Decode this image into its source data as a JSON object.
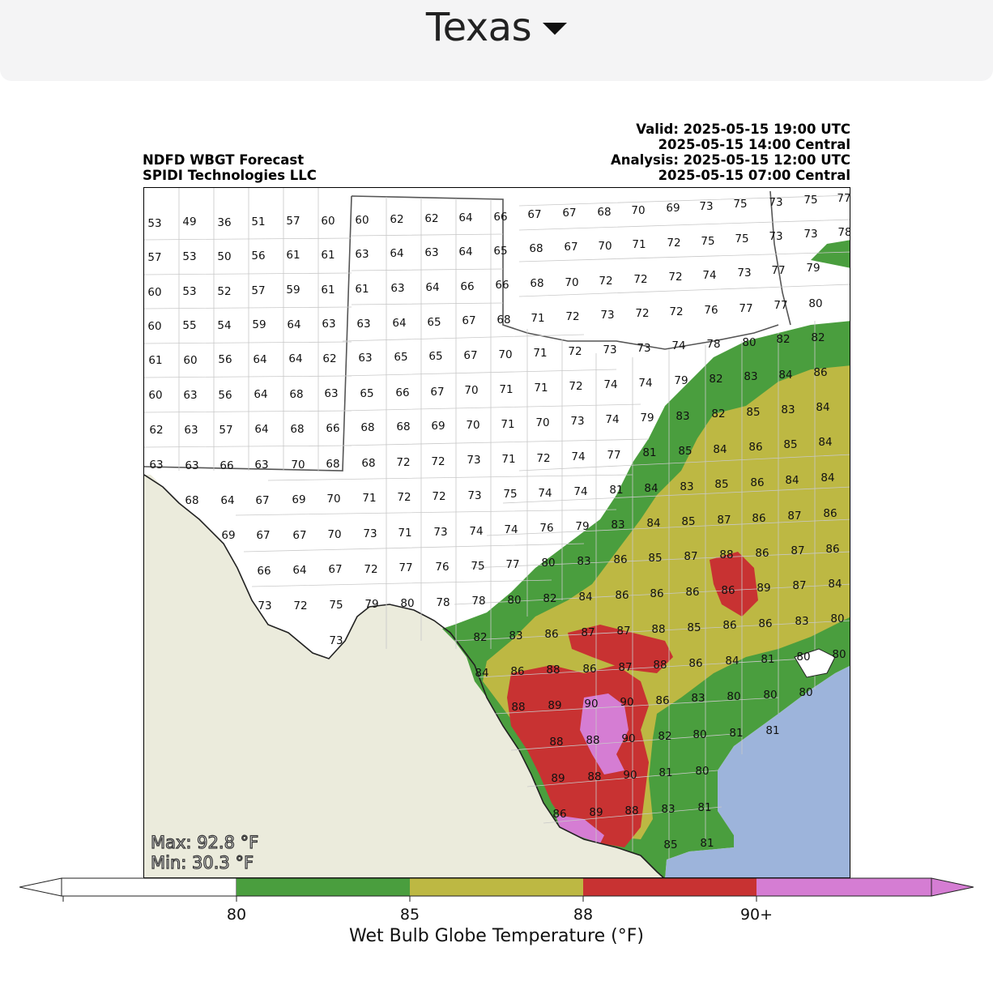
{
  "region_selector": {
    "label": "Texas",
    "icon": "caret-down-icon"
  },
  "header_left": {
    "line1": "NDFD WBGT Forecast",
    "line2": "SPIDI Technologies LLC"
  },
  "header_right": {
    "valid_utc": "Valid: 2025-05-15 19:00 UTC",
    "valid_central": "2025-05-15 14:00 Central",
    "analysis_utc": "Analysis: 2025-05-15 12:00 UTC",
    "analysis_central": "2025-05-15 07:00 Central"
  },
  "stats": {
    "max": "Max: 92.8 °F",
    "min": "Min: 30.3 °F"
  },
  "colorbar": {
    "title": "Wet Bulb Globe Temperature (°F)",
    "ticks": [
      "80",
      "85",
      "88",
      "90+"
    ],
    "colors": {
      "below_80": "#ffffff",
      "80_85": "#4a9e3e",
      "85_88": "#bdb843",
      "88_90": "#c83232",
      "90_plus": "#d57dd3"
    }
  },
  "map_colors": {
    "land_outside": "#ebebdc",
    "water": "#9db4db",
    "borders": "#bdbdbd",
    "state_line": "#555555"
  },
  "points": [
    [
      "53",
      190,
      275
    ],
    [
      "49",
      233,
      273
    ],
    [
      "36",
      276,
      274
    ],
    [
      "51",
      318,
      273
    ],
    [
      "57",
      361,
      272
    ],
    [
      "60",
      404,
      272
    ],
    [
      "60",
      446,
      271
    ],
    [
      "62",
      489,
      270
    ],
    [
      "62",
      532,
      269
    ],
    [
      "64",
      574,
      268
    ],
    [
      "66",
      617,
      267
    ],
    [
      "67",
      659,
      264
    ],
    [
      "67",
      702,
      262
    ],
    [
      "68",
      745,
      261
    ],
    [
      "70",
      787,
      259
    ],
    [
      "69",
      830,
      256
    ],
    [
      "73",
      871,
      254
    ],
    [
      "75",
      913,
      251
    ],
    [
      "73",
      957,
      249
    ],
    [
      "75",
      1000,
      246
    ],
    [
      "77",
      1041,
      244
    ],
    [
      "57",
      190,
      317
    ],
    [
      "53",
      233,
      316
    ],
    [
      "50",
      276,
      316
    ],
    [
      "56",
      318,
      315
    ],
    [
      "61",
      361,
      314
    ],
    [
      "61",
      404,
      314
    ],
    [
      "63",
      446,
      313
    ],
    [
      "64",
      489,
      312
    ],
    [
      "63",
      532,
      311
    ],
    [
      "64",
      574,
      310
    ],
    [
      "65",
      617,
      309
    ],
    [
      "68",
      661,
      306
    ],
    [
      "67",
      704,
      304
    ],
    [
      "70",
      746,
      303
    ],
    [
      "71",
      788,
      301
    ],
    [
      "72",
      831,
      299
    ],
    [
      "75",
      873,
      297
    ],
    [
      "75",
      915,
      294
    ],
    [
      "73",
      957,
      291
    ],
    [
      "73",
      1000,
      288
    ],
    [
      "78",
      1042,
      286
    ],
    [
      "60",
      190,
      360
    ],
    [
      "53",
      233,
      359
    ],
    [
      "52",
      276,
      359
    ],
    [
      "57",
      318,
      358
    ],
    [
      "59",
      361,
      357
    ],
    [
      "61",
      404,
      357
    ],
    [
      "61",
      446,
      356
    ],
    [
      "63",
      490,
      355
    ],
    [
      "64",
      533,
      354
    ],
    [
      "66",
      576,
      353
    ],
    [
      "66",
      619,
      351
    ],
    [
      "68",
      662,
      349
    ],
    [
      "70",
      705,
      348
    ],
    [
      "72",
      747,
      346
    ],
    [
      "72",
      790,
      344
    ],
    [
      "72",
      833,
      341
    ],
    [
      "74",
      875,
      339
    ],
    [
      "73",
      918,
      336
    ],
    [
      "77",
      960,
      333
    ],
    [
      "79",
      1003,
      330
    ],
    [
      "60",
      190,
      402
    ],
    [
      "55",
      233,
      401
    ],
    [
      "54",
      276,
      401
    ],
    [
      "59",
      319,
      400
    ],
    [
      "64",
      362,
      400
    ],
    [
      "63",
      405,
      399
    ],
    [
      "63",
      448,
      399
    ],
    [
      "64",
      492,
      398
    ],
    [
      "65",
      535,
      397
    ],
    [
      "67",
      578,
      395
    ],
    [
      "68",
      621,
      394
    ],
    [
      "71",
      663,
      392
    ],
    [
      "72",
      706,
      390
    ],
    [
      "73",
      749,
      388
    ],
    [
      "72",
      792,
      386
    ],
    [
      "72",
      834,
      384
    ],
    [
      "76",
      877,
      382
    ],
    [
      "77",
      920,
      380
    ],
    [
      "77",
      963,
      376
    ],
    [
      "80",
      1006,
      374
    ],
    [
      "61",
      191,
      444
    ],
    [
      "60",
      234,
      444
    ],
    [
      "56",
      277,
      443
    ],
    [
      "64",
      320,
      443
    ],
    [
      "64",
      364,
      442
    ],
    [
      "62",
      406,
      442
    ],
    [
      "63",
      450,
      441
    ],
    [
      "65",
      494,
      440
    ],
    [
      "65",
      537,
      439
    ],
    [
      "67",
      580,
      438
    ],
    [
      "70",
      623,
      437
    ],
    [
      "71",
      666,
      435
    ],
    [
      "72",
      709,
      433
    ],
    [
      "73",
      752,
      431
    ],
    [
      "73",
      794,
      429
    ],
    [
      "74",
      837,
      426
    ],
    [
      "78",
      880,
      424
    ],
    [
      "80",
      924,
      422
    ],
    [
      "82",
      966,
      418
    ],
    [
      "82",
      1009,
      416
    ],
    [
      "60",
      191,
      487
    ],
    [
      "63",
      234,
      487
    ],
    [
      "56",
      277,
      487
    ],
    [
      "64",
      321,
      486
    ],
    [
      "68",
      365,
      486
    ],
    [
      "63",
      408,
      485
    ],
    [
      "65",
      452,
      485
    ],
    [
      "66",
      496,
      484
    ],
    [
      "67",
      539,
      483
    ],
    [
      "70",
      581,
      481
    ],
    [
      "71",
      624,
      480
    ],
    [
      "71",
      667,
      478
    ],
    [
      "72",
      710,
      476
    ],
    [
      "74",
      753,
      474
    ],
    [
      "74",
      796,
      472
    ],
    [
      "79",
      840,
      469
    ],
    [
      "82",
      883,
      467
    ],
    [
      "83",
      926,
      464
    ],
    [
      "84",
      969,
      462
    ],
    [
      "86",
      1012,
      459
    ],
    [
      "62",
      192,
      530
    ],
    [
      "63",
      235,
      530
    ],
    [
      "57",
      278,
      530
    ],
    [
      "64",
      322,
      529
    ],
    [
      "68",
      366,
      529
    ],
    [
      "66",
      410,
      528
    ],
    [
      "68",
      453,
      527
    ],
    [
      "68",
      497,
      526
    ],
    [
      "69",
      540,
      525
    ],
    [
      "70",
      583,
      524
    ],
    [
      "71",
      626,
      523
    ],
    [
      "70",
      669,
      521
    ],
    [
      "73",
      712,
      519
    ],
    [
      "74",
      755,
      517
    ],
    [
      "79",
      798,
      515
    ],
    [
      "83",
      842,
      513
    ],
    [
      "82",
      886,
      510
    ],
    [
      "85",
      929,
      508
    ],
    [
      "83",
      972,
      505
    ],
    [
      "84",
      1015,
      502
    ],
    [
      "63",
      192,
      573
    ],
    [
      "63",
      236,
      574
    ],
    [
      "66",
      279,
      574
    ],
    [
      "63",
      322,
      573
    ],
    [
      "70",
      367,
      573
    ],
    [
      "68",
      410,
      572
    ],
    [
      "68",
      454,
      571
    ],
    [
      "72",
      497,
      570
    ],
    [
      "72",
      540,
      569
    ],
    [
      "73",
      584,
      567
    ],
    [
      "71",
      627,
      566
    ],
    [
      "72",
      670,
      565
    ],
    [
      "74",
      713,
      563
    ],
    [
      "77",
      757,
      561
    ],
    [
      "81",
      801,
      558
    ],
    [
      "85",
      845,
      556
    ],
    [
      "84",
      888,
      554
    ],
    [
      "86",
      932,
      551
    ],
    [
      "85",
      975,
      548
    ],
    [
      "84",
      1018,
      545
    ],
    [
      "68",
      236,
      617
    ],
    [
      "64",
      280,
      617
    ],
    [
      "67",
      323,
      617
    ],
    [
      "69",
      368,
      616
    ],
    [
      "70",
      411,
      615
    ],
    [
      "71",
      455,
      614
    ],
    [
      "72",
      498,
      613
    ],
    [
      "72",
      541,
      612
    ],
    [
      "73",
      585,
      611
    ],
    [
      "75",
      629,
      609
    ],
    [
      "74",
      672,
      608
    ],
    [
      "74",
      716,
      606
    ],
    [
      "81",
      760,
      604
    ],
    [
      "84",
      803,
      602
    ],
    [
      "83",
      847,
      600
    ],
    [
      "85",
      890,
      597
    ],
    [
      "86",
      934,
      595
    ],
    [
      "84",
      977,
      592
    ],
    [
      "84",
      1021,
      589
    ],
    [
      "69",
      281,
      660
    ],
    [
      "67",
      324,
      660
    ],
    [
      "67",
      369,
      660
    ],
    [
      "70",
      412,
      659
    ],
    [
      "73",
      456,
      658
    ],
    [
      "71",
      499,
      657
    ],
    [
      "73",
      543,
      656
    ],
    [
      "74",
      587,
      655
    ],
    [
      "74",
      630,
      653
    ],
    [
      "76",
      674,
      651
    ],
    [
      "79",
      718,
      649
    ],
    [
      "83",
      762,
      647
    ],
    [
      "84",
      806,
      645
    ],
    [
      "85",
      849,
      643
    ],
    [
      "87",
      893,
      641
    ],
    [
      "86",
      936,
      639
    ],
    [
      "87",
      980,
      636
    ],
    [
      "86",
      1024,
      633
    ],
    [
      "66",
      325,
      704
    ],
    [
      "64",
      369,
      703
    ],
    [
      "67",
      413,
      702
    ],
    [
      "72",
      457,
      702
    ],
    [
      "77",
      500,
      700
    ],
    [
      "76",
      545,
      699
    ],
    [
      "75",
      589,
      698
    ],
    [
      "77",
      632,
      696
    ],
    [
      "80",
      676,
      694
    ],
    [
      "83",
      720,
      692
    ],
    [
      "86",
      765,
      690
    ],
    [
      "85",
      808,
      688
    ],
    [
      "87",
      852,
      686
    ],
    [
      "88",
      896,
      684
    ],
    [
      "86",
      940,
      682
    ],
    [
      "87",
      984,
      679
    ],
    [
      "86",
      1027,
      677
    ],
    [
      "73",
      326,
      747
    ],
    [
      "72",
      370,
      747
    ],
    [
      "75",
      414,
      746
    ],
    [
      "79",
      458,
      745
    ],
    [
      "80",
      502,
      744
    ],
    [
      "78",
      546,
      743
    ],
    [
      "78",
      590,
      741
    ],
    [
      "80",
      634,
      740
    ],
    [
      "82",
      678,
      738
    ],
    [
      "84",
      722,
      736
    ],
    [
      "86",
      767,
      734
    ],
    [
      "86",
      810,
      732
    ],
    [
      "86",
      854,
      730
    ],
    [
      "86",
      898,
      728
    ],
    [
      "89",
      942,
      725
    ],
    [
      "87",
      986,
      722
    ],
    [
      "84",
      1030,
      720
    ],
    [
      "73",
      414,
      790
    ],
    [
      "82",
      592,
      786
    ],
    [
      "83",
      636,
      784
    ],
    [
      "86",
      680,
      782
    ],
    [
      "87",
      725,
      780
    ],
    [
      "87",
      769,
      778
    ],
    [
      "88",
      812,
      776
    ],
    [
      "85",
      856,
      774
    ],
    [
      "86",
      900,
      771
    ],
    [
      "86",
      944,
      769
    ],
    [
      "83",
      989,
      766
    ],
    [
      "80",
      1033,
      763
    ],
    [
      "84",
      594,
      830
    ],
    [
      "86",
      638,
      828
    ],
    [
      "88",
      682,
      826
    ],
    [
      "86",
      727,
      825
    ],
    [
      "87",
      771,
      823
    ],
    [
      "88",
      814,
      820
    ],
    [
      "86",
      858,
      818
    ],
    [
      "84",
      903,
      815
    ],
    [
      "81",
      947,
      813
    ],
    [
      "80",
      991,
      810
    ],
    [
      "80",
      1035,
      807
    ],
    [
      "88",
      639,
      872
    ],
    [
      "89",
      684,
      870
    ],
    [
      "90",
      729,
      868
    ],
    [
      "90",
      773,
      866
    ],
    [
      "86",
      817,
      864
    ],
    [
      "83",
      861,
      861
    ],
    [
      "80",
      905,
      859
    ],
    [
      "80",
      950,
      857
    ],
    [
      "80",
      994,
      854
    ],
    [
      "88",
      686,
      915
    ],
    [
      "88",
      731,
      913
    ],
    [
      "90",
      775,
      911
    ],
    [
      "82",
      820,
      908
    ],
    [
      "80",
      863,
      906
    ],
    [
      "81",
      908,
      904
    ],
    [
      "81",
      953,
      901
    ],
    [
      "89",
      688,
      960
    ],
    [
      "88",
      733,
      958
    ],
    [
      "90",
      777,
      956
    ],
    [
      "81",
      821,
      953
    ],
    [
      "80",
      866,
      951
    ],
    [
      "86",
      690,
      1004
    ],
    [
      "89",
      735,
      1002
    ],
    [
      "88",
      779,
      1000
    ],
    [
      "83",
      824,
      998
    ],
    [
      "81",
      869,
      996
    ],
    [
      "85",
      827,
      1042
    ],
    [
      "81",
      872,
      1040
    ]
  ]
}
